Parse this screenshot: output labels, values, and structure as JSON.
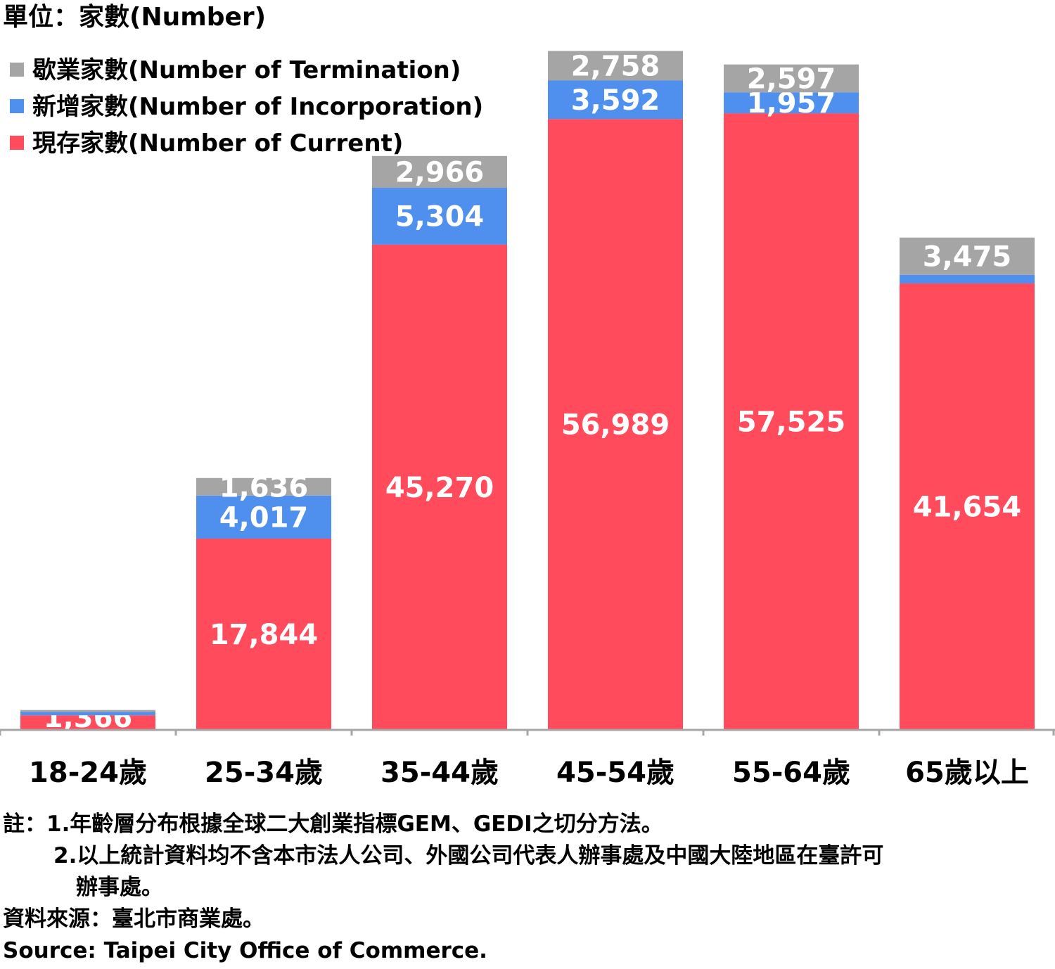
{
  "unit_label": "單位：家數(Number)",
  "legend": [
    {
      "label": "歇業家數(Number of Termination)",
      "color": "#a5a5a5"
    },
    {
      "label": "新增家數(Number of Incorporation)",
      "color": "#4f8fed"
    },
    {
      "label": "現存家數(Number of Current)",
      "color": "#ff4b5c"
    }
  ],
  "chart_data": {
    "type": "bar",
    "stacked": true,
    "categories": [
      "18-24歲",
      "25-34歲",
      "35-44歲",
      "45-54歲",
      "55-64歲",
      "65歲以上"
    ],
    "series": [
      {
        "name": "現存家數(Number of Current)",
        "color": "#ff4b5c",
        "values": [
          1366,
          17844,
          45270,
          56989,
          57525,
          41654
        ]
      },
      {
        "name": "新增家數(Number of Incorporation)",
        "color": "#4f8fed",
        "values": [
          310,
          4017,
          5304,
          3592,
          1957,
          800
        ]
      },
      {
        "name": "歇業家數(Number of Termination)",
        "color": "#a5a5a5",
        "values": [
          180,
          1636,
          2966,
          2758,
          2597,
          3475
        ]
      }
    ],
    "data_labels": [
      [
        "1,366",
        "17,844",
        "45,270",
        "56,989",
        "57,525",
        "41,654"
      ],
      [
        "",
        "4,017",
        "5,304",
        "3,592",
        "1,957",
        ""
      ],
      [
        "",
        "1,636",
        "2,966",
        "2,758",
        "2,597",
        "3,475"
      ]
    ],
    "ylim": [
      0,
      63500
    ],
    "legend_position": "top-left",
    "grid": false
  },
  "notes": {
    "line1": "註：1.年齡層分布根據全球二大創業指標GEM、GEDI之切分方法。",
    "line2": "2.以上統計資料均不含本市法人公司、外國公司代表人辦事處及中國大陸地區在臺許可",
    "line3": "辦事處。",
    "line4": "資料來源：臺北市商業處。",
    "source": "Source: Taipei City Office of Commerce."
  }
}
